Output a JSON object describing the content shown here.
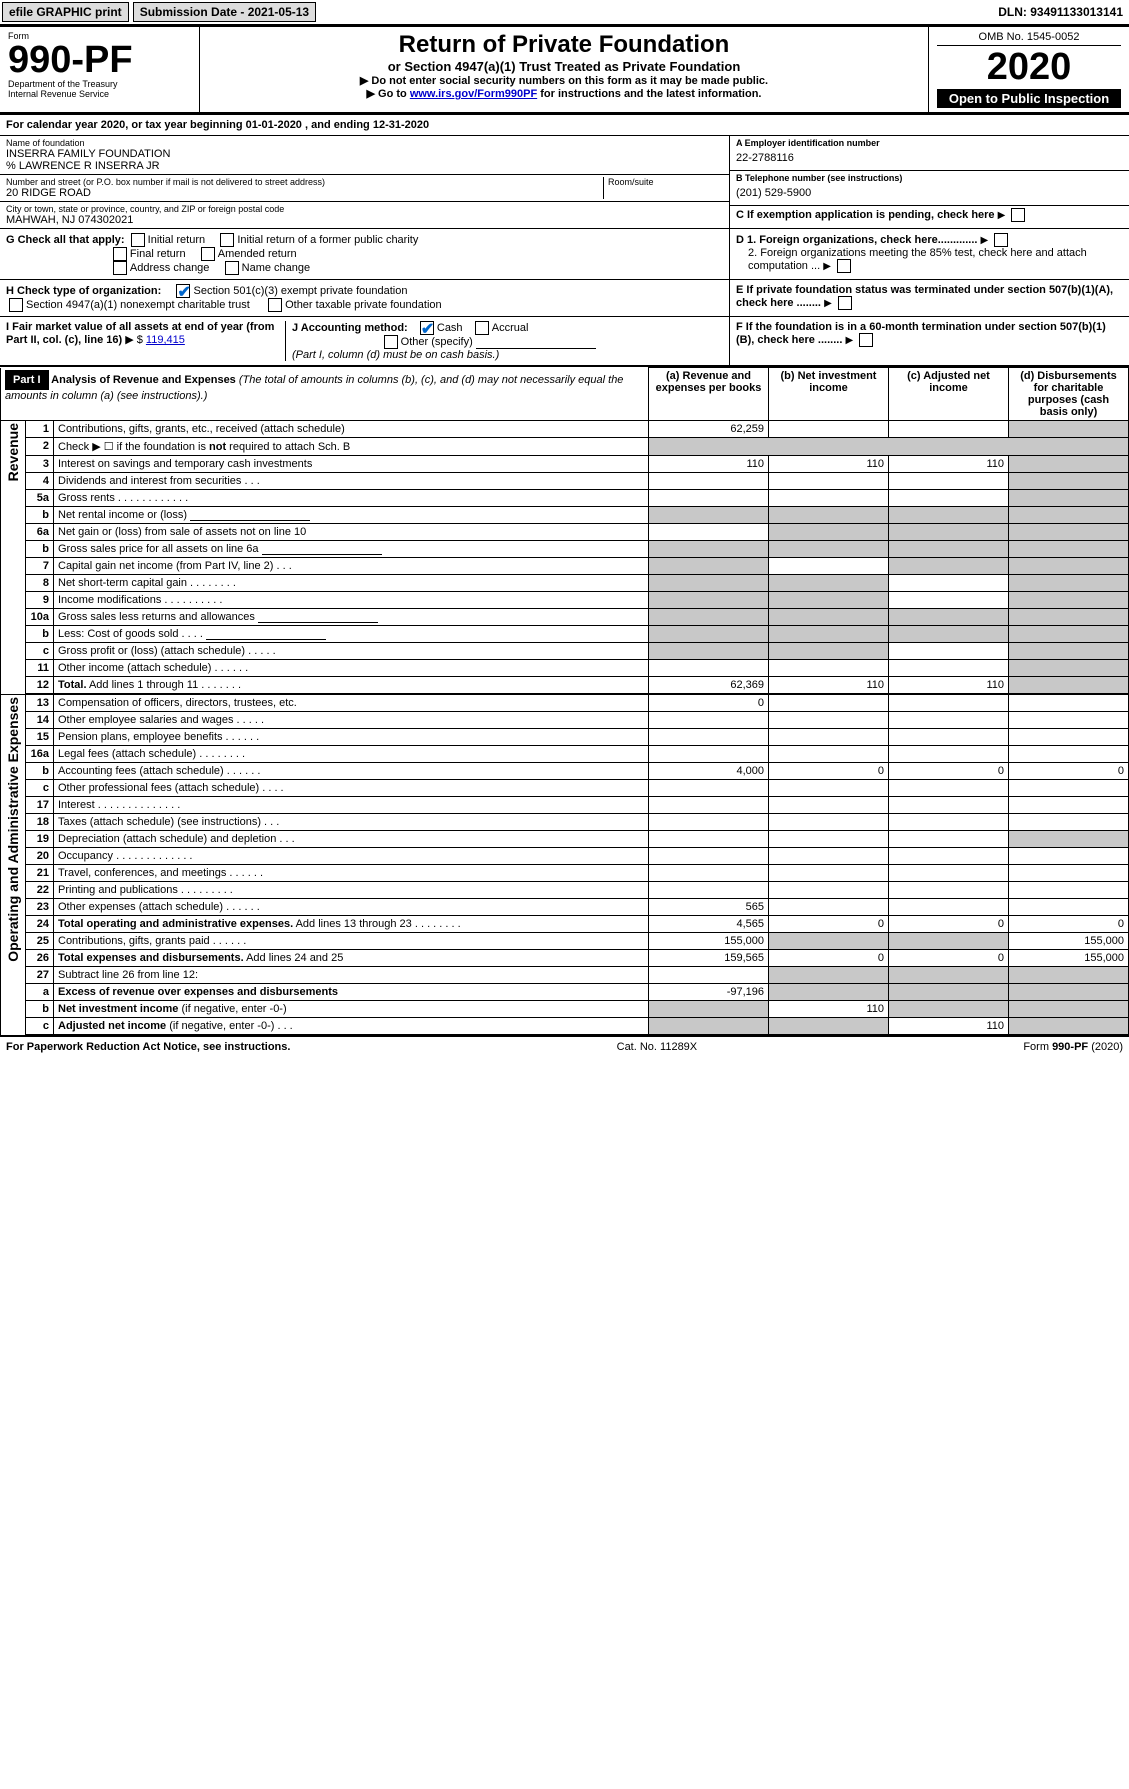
{
  "topBar": {
    "efile": "efile GRAPHIC print",
    "submLabel": "Submission Date - 2021-05-13",
    "dln": "DLN: 93491133013141"
  },
  "header": {
    "formLabel": "Form",
    "formNum": "990-PF",
    "dept": "Department of the Treasury",
    "irs": "Internal Revenue Service",
    "title": "Return of Private Foundation",
    "subtitle": "or Section 4947(a)(1) Trust Treated as Private Foundation",
    "instr1": "▶ Do not enter social security numbers on this form as it may be made public.",
    "instr2Prefix": "▶ Go to ",
    "instr2Link": "www.irs.gov/Form990PF",
    "instr2Suffix": " for instructions and the latest information.",
    "omb": "OMB No. 1545-0052",
    "year": "2020",
    "openPub": "Open to Public Inspection"
  },
  "calYear": {
    "label": "For calendar year 2020, or tax year beginning ",
    "begin": "01-01-2020",
    "mid": " , and ending ",
    "end": "12-31-2020"
  },
  "ident": {
    "nameLabel": "Name of foundation",
    "name": "INSERRA FAMILY FOUNDATION",
    "care": "% LAWRENCE R INSERRA JR",
    "addrLabel": "Number and street (or P.O. box number if mail is not delivered to street address)",
    "roomLabel": "Room/suite",
    "addr": "20 RIDGE ROAD",
    "cityLabel": "City or town, state or province, country, and ZIP or foreign postal code",
    "city": "MAHWAH, NJ  074302021",
    "aLabel": "A Employer identification number",
    "a": "22-2788116",
    "bLabel": "B Telephone number (see instructions)",
    "b": "(201) 529-5900",
    "cLabel": "C If exemption application is pending, check here",
    "d1": "D 1. Foreign organizations, check here.............",
    "d2": "2. Foreign organizations meeting the 85% test, check here and attach computation ...",
    "e": "E  If private foundation status was terminated under section 507(b)(1)(A), check here ........",
    "f": "F  If the foundation is in a 60-month termination under section 507(b)(1)(B), check here ........"
  },
  "g": {
    "label": "G Check all that apply:",
    "opts": [
      "Initial return",
      "Initial return of a former public charity",
      "Final return",
      "Amended return",
      "Address change",
      "Name change"
    ]
  },
  "h": {
    "label": "H Check type of organization:",
    "opt1": "Section 501(c)(3) exempt private foundation",
    "opt2": "Section 4947(a)(1) nonexempt charitable trust",
    "opt3": "Other taxable private foundation"
  },
  "i": {
    "label": "I Fair market value of all assets at end of year (from Part II, col. (c), line 16)",
    "prefix": "▶ $",
    "value": "119,415"
  },
  "j": {
    "label": "J Accounting method:",
    "cash": "Cash",
    "accrual": "Accrual",
    "other": "Other (specify)",
    "note": "(Part I, column (d) must be on cash basis.)"
  },
  "part1": {
    "hdr": "Part I",
    "title": "Analysis of Revenue and Expenses",
    "titleNote": " (The total of amounts in columns (b), (c), and (d) may not necessarily equal the amounts in column (a) (see instructions).)",
    "colA": "(a) Revenue and expenses per books",
    "colB": "(b) Net investment income",
    "colC": "(c) Adjusted net income",
    "colD": "(d) Disbursements for charitable purposes (cash basis only)"
  },
  "sections": {
    "rev": "Revenue",
    "exp": "Operating and Administrative Expenses"
  },
  "rows": [
    {
      "n": "1",
      "d": "Contributions, gifts, grants, etc., received (attach schedule)",
      "a": "62,259",
      "b": "",
      "c": "",
      "dGrey": true
    },
    {
      "n": "2",
      "d": "Check ▶ ☐ if the foundation is <b>not</b> required to attach Sch. B",
      "noAmt": true
    },
    {
      "n": "3",
      "d": "Interest on savings and temporary cash investments",
      "a": "110",
      "b": "110",
      "c": "110"
    },
    {
      "n": "4",
      "d": "Dividends and interest from securities   .  .  .",
      "a": "",
      "b": "",
      "c": ""
    },
    {
      "n": "5a",
      "d": "Gross rents   .  .  .  .  .  .  .  .  .  .  .  .",
      "a": "",
      "b": "",
      "c": ""
    },
    {
      "n": "b",
      "d": "Net rental income or (loss)",
      "blank": true,
      "allGrey": true
    },
    {
      "n": "6a",
      "d": "Net gain or (loss) from sale of assets not on line 10",
      "a": "",
      "bGrey": true,
      "cGrey": true,
      "dGrey": true
    },
    {
      "n": "b",
      "d": "Gross sales price for all assets on line 6a",
      "blank": true,
      "allGrey": true
    },
    {
      "n": "7",
      "d": "Capital gain net income (from Part IV, line 2)   .  .  .",
      "aGrey": true,
      "b": "",
      "cGrey": true,
      "dGrey": true
    },
    {
      "n": "8",
      "d": "Net short-term capital gain   .  .  .  .  .  .  .  .",
      "aGrey": true,
      "bGrey": true,
      "c": "",
      "dGrey": true
    },
    {
      "n": "9",
      "d": "Income modifications   .  .  .  .  .  .  .  .  .  .",
      "aGrey": true,
      "bGrey": true,
      "c": "",
      "dGrey": true
    },
    {
      "n": "10a",
      "d": "Gross sales less returns and allowances",
      "blank": true,
      "allGrey": true
    },
    {
      "n": "b",
      "d": "Less: Cost of goods sold   .  .  .  .",
      "blank": true,
      "allGrey": true
    },
    {
      "n": "c",
      "d": "Gross profit or (loss) (attach schedule)   .  .  .  .  .",
      "aGrey": true,
      "bGrey": true,
      "c": "",
      "dGrey": true
    },
    {
      "n": "11",
      "d": "Other income (attach schedule)   .  .  .  .  .  .",
      "a": "",
      "b": "",
      "c": ""
    },
    {
      "n": "12",
      "d": "<b>Total.</b> Add lines 1 through 11   .  .  .  .  .  .  .",
      "a": "62,369",
      "b": "110",
      "c": "110",
      "dGrey": true
    },
    {
      "n": "13",
      "d": "Compensation of officers, directors, trustees, etc.",
      "a": "0",
      "b": "",
      "c": "",
      "dv": ""
    },
    {
      "n": "14",
      "d": "Other employee salaries and wages   .  .  .  .  .",
      "a": "",
      "b": "",
      "c": "",
      "dv": ""
    },
    {
      "n": "15",
      "d": "Pension plans, employee benefits   .  .  .  .  .  .",
      "a": "",
      "b": "",
      "c": "",
      "dv": ""
    },
    {
      "n": "16a",
      "d": "Legal fees (attach schedule)  .  .  .  .  .  .  .  .",
      "a": "",
      "b": "",
      "c": "",
      "dv": ""
    },
    {
      "n": "b",
      "d": "Accounting fees (attach schedule)   .  .  .  .  .  .",
      "a": "4,000",
      "b": "0",
      "c": "0",
      "dv": "0"
    },
    {
      "n": "c",
      "d": "Other professional fees (attach schedule)   .  .  .  .",
      "a": "",
      "b": "",
      "c": "",
      "dv": ""
    },
    {
      "n": "17",
      "d": "Interest   .  .  .  .  .  .  .  .  .  .  .  .  .  .",
      "a": "",
      "b": "",
      "c": "",
      "dv": ""
    },
    {
      "n": "18",
      "d": "Taxes (attach schedule) (see instructions)   .  .  .",
      "a": "",
      "b": "",
      "c": "",
      "dv": ""
    },
    {
      "n": "19",
      "d": "Depreciation (attach schedule) and depletion   .  .  .",
      "a": "",
      "b": "",
      "c": "",
      "dGrey": true
    },
    {
      "n": "20",
      "d": "Occupancy  .  .  .  .  .  .  .  .  .  .  .  .  .",
      "a": "",
      "b": "",
      "c": "",
      "dv": ""
    },
    {
      "n": "21",
      "d": "Travel, conferences, and meetings   .  .  .  .  .  .",
      "a": "",
      "b": "",
      "c": "",
      "dv": ""
    },
    {
      "n": "22",
      "d": "Printing and publications   .  .  .  .  .  .  .  .  .",
      "a": "",
      "b": "",
      "c": "",
      "dv": ""
    },
    {
      "n": "23",
      "d": "Other expenses (attach schedule)   .  .  .  .  .  .",
      "a": "565",
      "b": "",
      "c": "",
      "dv": ""
    },
    {
      "n": "24",
      "d": "<b>Total operating and administrative expenses.</b> Add lines 13 through 23   .  .  .  .  .  .  .  .",
      "a": "4,565",
      "b": "0",
      "c": "0",
      "dv": "0"
    },
    {
      "n": "25",
      "d": "Contributions, gifts, grants paid   .  .  .  .  .  .",
      "a": "155,000",
      "bGrey": true,
      "cGrey": true,
      "dv": "155,000"
    },
    {
      "n": "26",
      "d": "<b>Total expenses and disbursements.</b> Add lines 24 and 25",
      "a": "159,565",
      "b": "0",
      "c": "0",
      "dv": "155,000"
    },
    {
      "n": "27",
      "d": "Subtract line 26 from line 12:",
      "allGrey": true,
      "aGrey": false,
      "noBorder": true
    },
    {
      "n": "a",
      "d": "<b>Excess of revenue over expenses and disbursements</b>",
      "a": "-97,196",
      "bGrey": true,
      "cGrey": true,
      "dGrey": true
    },
    {
      "n": "b",
      "d": "<b>Net investment income</b> (if negative, enter -0-)",
      "aGrey": true,
      "b": "110",
      "cGrey": true,
      "dGrey": true
    },
    {
      "n": "c",
      "d": "<b>Adjusted net income</b> (if negative, enter -0-)   .  .  .",
      "aGrey": true,
      "bGrey": true,
      "c": "110",
      "dGrey": true
    }
  ],
  "footer": {
    "left": "For Paperwork Reduction Act Notice, see instructions.",
    "mid": "Cat. No. 11289X",
    "right": "Form 990-PF (2020)"
  }
}
